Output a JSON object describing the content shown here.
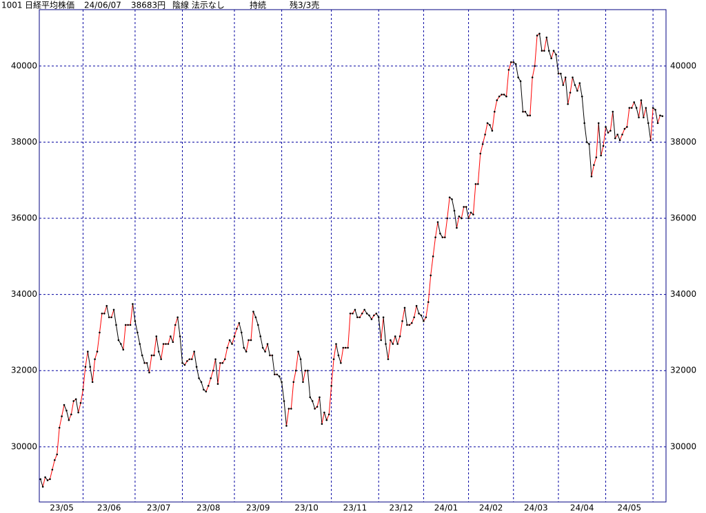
{
  "chart_data": {
    "type": "line",
    "header": {
      "code": "1001",
      "name": "日経平均株価",
      "date": "24/06/07",
      "price": "38683円",
      "signal": "陰線 法示なし",
      "state": "持続",
      "remain": "残3/3売"
    },
    "series": [
      {
        "up_color": "#ff0000",
        "down_color": "#000000",
        "marker_color": "#000000",
        "values": [
          29150,
          28950,
          29200,
          29120,
          29150,
          29400,
          29650,
          29800,
          30500,
          30800,
          31100,
          30950,
          30700,
          30850,
          31200,
          31250,
          30900,
          31150,
          31500,
          32100,
          32500,
          32100,
          31700,
          32300,
          32500,
          33000,
          33500,
          33500,
          33700,
          33400,
          33400,
          33600,
          33200,
          32800,
          32700,
          32550,
          33200,
          33200,
          33200,
          33750,
          33300,
          33000,
          32700,
          32400,
          32200,
          32200,
          31950,
          32400,
          32400,
          32900,
          32500,
          32300,
          32700,
          32700,
          32700,
          32900,
          32750,
          33200,
          33400,
          32900,
          32200,
          32150,
          32250,
          32300,
          32300,
          32500,
          32100,
          31800,
          31700,
          31500,
          31450,
          31600,
          31800,
          32000,
          32300,
          31650,
          32200,
          32200,
          32300,
          32600,
          32800,
          32700,
          32900,
          33100,
          33250,
          33000,
          32600,
          32500,
          32800,
          32800,
          33550,
          33400,
          33200,
          32900,
          32600,
          32500,
          32700,
          32400,
          32400,
          31900,
          31900,
          31850,
          31700,
          31200,
          30550,
          31000,
          31000,
          31700,
          32000,
          32500,
          32300,
          31700,
          32000,
          32000,
          31300,
          31200,
          31000,
          31050,
          31300,
          30600,
          30900,
          30700,
          30850,
          31600,
          32300,
          32700,
          32400,
          32200,
          32600,
          32600,
          32600,
          33500,
          33500,
          33600,
          33400,
          33400,
          33500,
          33600,
          33500,
          33450,
          33350,
          33450,
          33500,
          33400,
          32800,
          33400,
          32700,
          32300,
          32800,
          32700,
          32900,
          32700,
          32900,
          33300,
          33650,
          33200,
          33200,
          33250,
          33400,
          33700,
          33500,
          33450,
          33300,
          33400,
          33800,
          34500,
          35000,
          35500,
          35900,
          35600,
          35500,
          35500,
          36000,
          36550,
          36500,
          36200,
          35750,
          36050,
          36000,
          36300,
          36300,
          36000,
          36150,
          36100,
          36900,
          36900,
          37700,
          37950,
          38200,
          38500,
          38450,
          38300,
          38800,
          39100,
          39200,
          39250,
          39250,
          39200,
          39900,
          40100,
          40100,
          40050,
          39700,
          39600,
          38800,
          38800,
          38700,
          38700,
          39700,
          40000,
          40800,
          40850,
          40400,
          40400,
          40750,
          40400,
          40200,
          40400,
          40300,
          39800,
          39800,
          39500,
          39700,
          39000,
          39300,
          39700,
          39500,
          39350,
          39550,
          39200,
          38500,
          38000,
          37950,
          37100,
          37400,
          37600,
          38500,
          37650,
          37900,
          38400,
          38250,
          38300,
          38800,
          38100,
          38200,
          38050,
          38200,
          38350,
          38400,
          38900,
          38900,
          39050,
          38900,
          38650,
          39100,
          38650,
          38900,
          38500,
          38050,
          38900,
          38850,
          38500,
          38700,
          38683
        ]
      }
    ],
    "xlim": [
      -0.5,
      264.5
    ],
    "xticks": [
      {
        "value": 0,
        "label": "23/05"
      },
      {
        "value": 18,
        "label": "23/06"
      },
      {
        "value": 40,
        "label": "23/07"
      },
      {
        "value": 60,
        "label": "23/08"
      },
      {
        "value": 82,
        "label": "23/09"
      },
      {
        "value": 102,
        "label": "23/10"
      },
      {
        "value": 123,
        "label": "23/11"
      },
      {
        "value": 143,
        "label": "23/12"
      },
      {
        "value": 162,
        "label": "24/01"
      },
      {
        "value": 181,
        "label": "24/02"
      },
      {
        "value": 200,
        "label": "24/03"
      },
      {
        "value": 219,
        "label": "24/04"
      },
      {
        "value": 239,
        "label": "24/05"
      },
      {
        "value": 259,
        "label": null
      }
    ],
    "ylim": [
      28550,
      41480
    ],
    "yticks": [
      30000,
      32000,
      34000,
      36000,
      38000,
      40000
    ],
    "grid": true,
    "grid_color": "#0000a0",
    "frame_color": "#000080"
  }
}
